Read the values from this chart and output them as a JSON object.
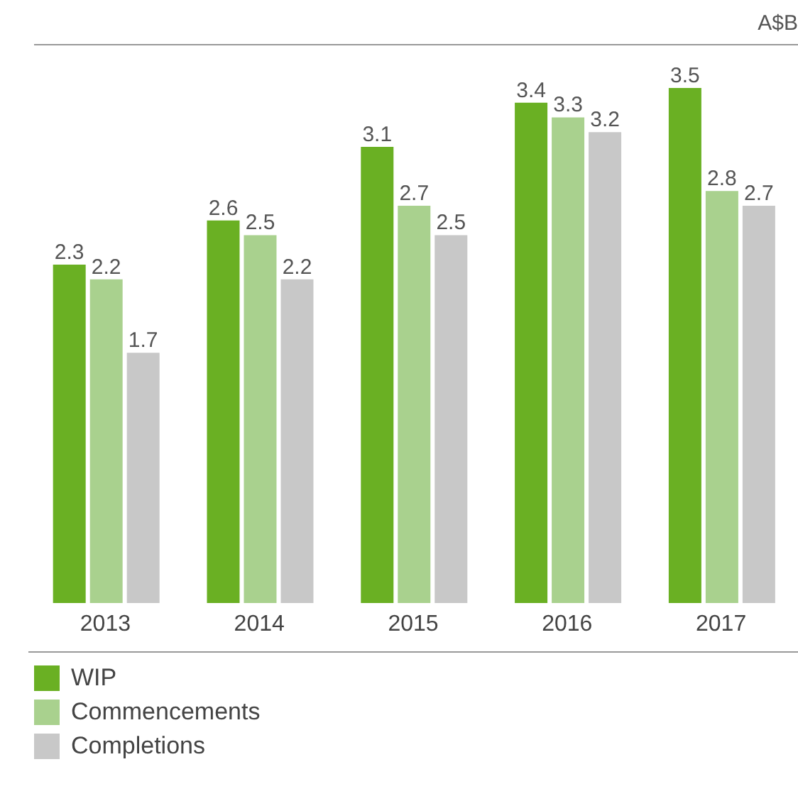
{
  "chart_data": {
    "type": "bar",
    "title": "A$B",
    "categories": [
      "2013",
      "2014",
      "2015",
      "2016",
      "2017"
    ],
    "series": [
      {
        "name": "WIP",
        "color": "#6ab023",
        "values": [
          2.3,
          2.6,
          3.1,
          3.4,
          3.5
        ]
      },
      {
        "name": "Commencements",
        "color": "#a9d18e",
        "values": [
          2.2,
          2.5,
          2.7,
          3.3,
          2.8
        ]
      },
      {
        "name": "Completions",
        "color": "#c8c8c8",
        "values": [
          1.7,
          2.2,
          2.5,
          3.2,
          2.7
        ]
      }
    ],
    "data_labels": true,
    "legend": "bottom left",
    "grid": false
  }
}
